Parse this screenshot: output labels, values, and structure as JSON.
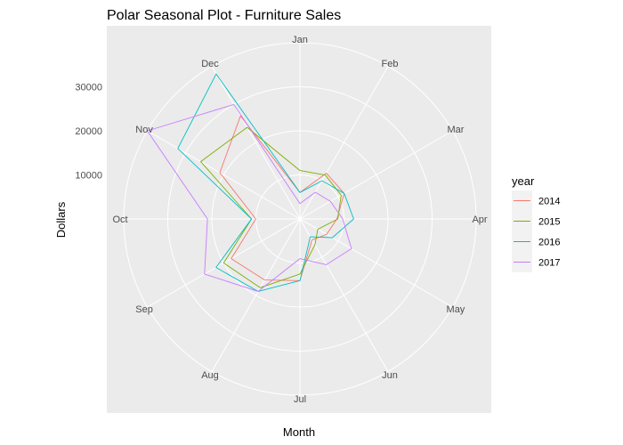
{
  "chart_data": {
    "type": "line",
    "subtype": "polar",
    "title": "Polar Seasonal Plot - Furniture Sales",
    "xlabel": "Month",
    "ylabel": "Dollars",
    "x": [
      "Jan",
      "Feb",
      "Mar",
      "Apr",
      "May",
      "Jun",
      "Jul",
      "Aug",
      "Sep",
      "Oct",
      "Nov",
      "Dec"
    ],
    "ylim": [
      0,
      40000
    ],
    "radial_ticks": [
      10000,
      20000,
      30000
    ],
    "radial_tick_labels": [
      "10000",
      "20000",
      "30000"
    ],
    "legend": {
      "title": "year",
      "placement": "right"
    },
    "grid": true,
    "series": [
      {
        "name": "2014",
        "color": "#F8766D",
        "values": [
          6000,
          12000,
          11600,
          8400,
          7000,
          5500,
          14000,
          16000,
          18000,
          10000,
          21000,
          27000
        ]
      },
      {
        "name": "2015",
        "color": "#7CAE00",
        "values": [
          11000,
          11500,
          10800,
          8600,
          4700,
          6800,
          12500,
          18000,
          20000,
          11000,
          26000,
          24000
        ]
      },
      {
        "name": "2016",
        "color": "#00BFC4",
        "values": [
          6000,
          10000,
          11600,
          12200,
          8500,
          4700,
          14000,
          19000,
          22000,
          11000,
          32000,
          38000
        ]
      },
      {
        "name": "2017",
        "color": "#C77CFF",
        "values": [
          3500,
          7000,
          8000,
          9700,
          13500,
          12000,
          9000,
          19000,
          25000,
          21000,
          40000,
          30000
        ]
      }
    ]
  }
}
